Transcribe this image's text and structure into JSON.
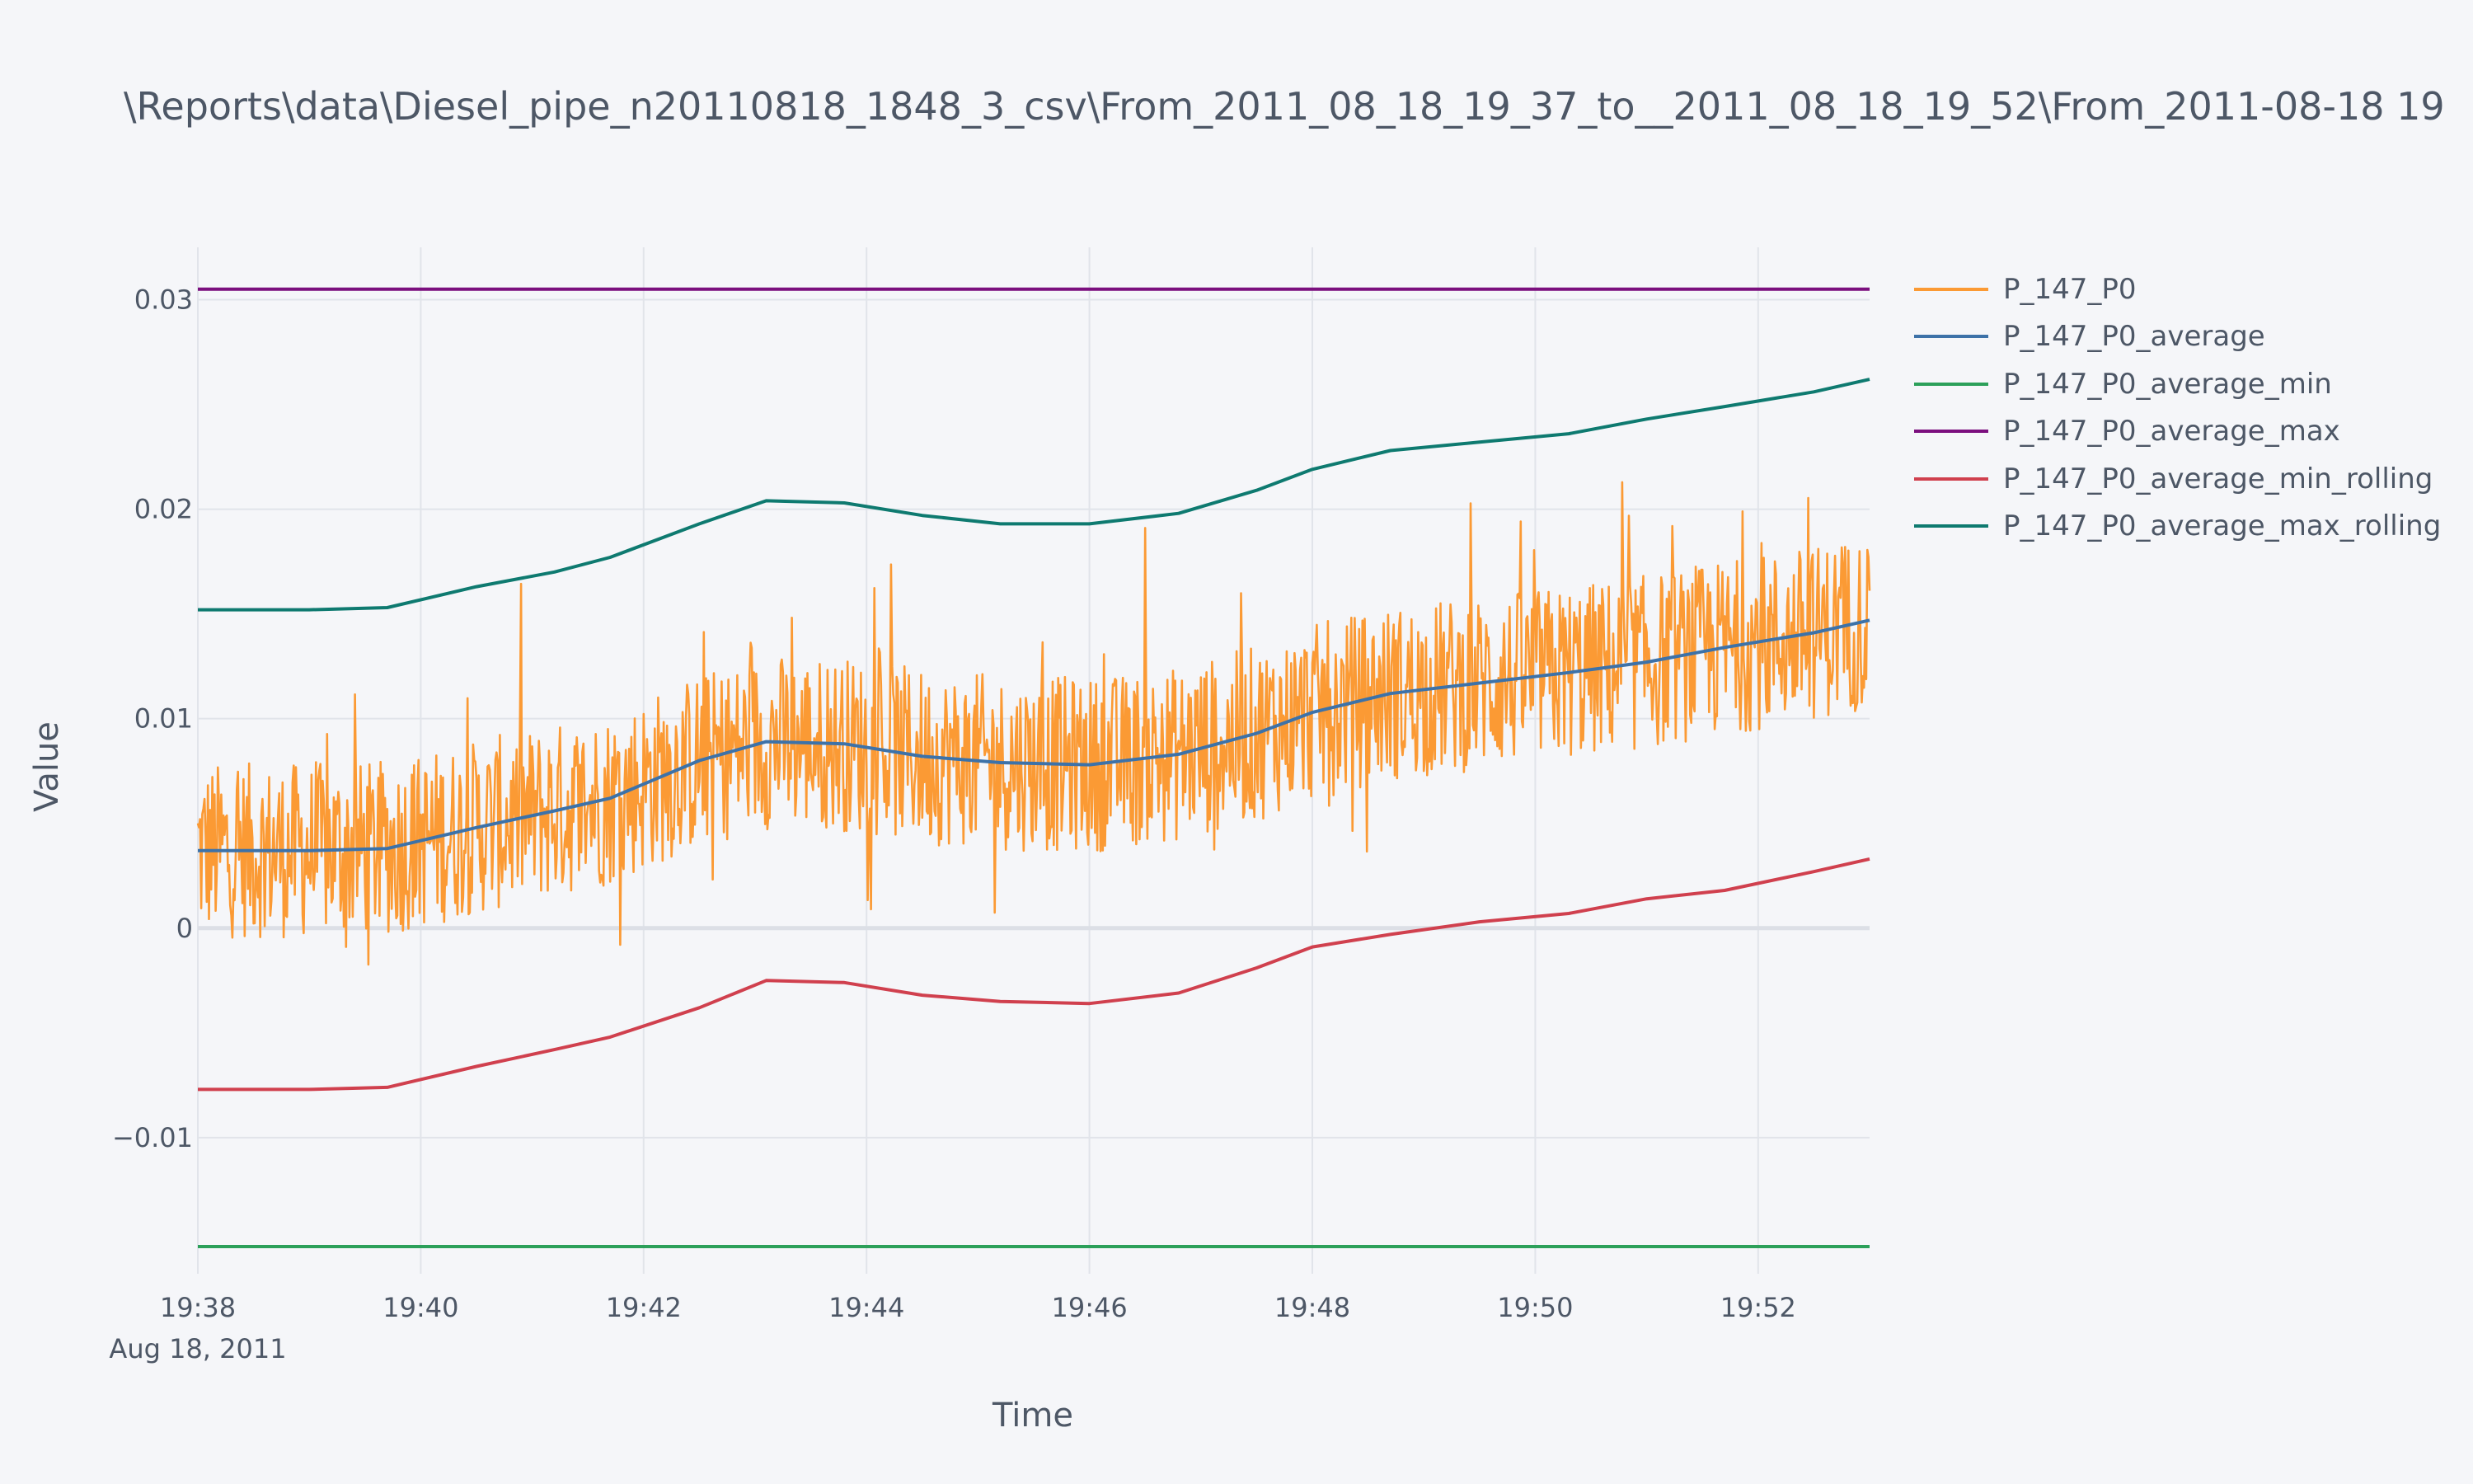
{
  "title": "\\Reports\\data\\Diesel_pipe_n20110818_1848_3_csv\\From_2011_08_18_19_37_to__2011_08_18_19_52\\From_2011-08-18 19",
  "chart_data": {
    "type": "line",
    "title": "\\Reports\\data\\Diesel_pipe_n20110818_1848_3_csv\\From_2011_08_18_19_37_to__2011_08_18_19_52\\From_2011-08-18 19",
    "xlabel": "Time",
    "ylabel": "Value",
    "x_unit": "minutes past 19:00, Aug 18, 2011",
    "xlim": [
      38,
      53
    ],
    "ylim": [
      -0.0165,
      0.0325
    ],
    "x_ticks": [
      {
        "value": 38,
        "label": "19:38",
        "sublabel": "Aug 18, 2011"
      },
      {
        "value": 40,
        "label": "19:40"
      },
      {
        "value": 42,
        "label": "19:42"
      },
      {
        "value": 44,
        "label": "19:44"
      },
      {
        "value": 46,
        "label": "19:46"
      },
      {
        "value": 48,
        "label": "19:48"
      },
      {
        "value": 50,
        "label": "19:50"
      },
      {
        "value": 52,
        "label": "19:52"
      }
    ],
    "y_ticks": [
      {
        "value": 0.03,
        "label": "0.03"
      },
      {
        "value": 0.02,
        "label": "0.02"
      },
      {
        "value": 0.01,
        "label": "0.01"
      },
      {
        "value": 0,
        "label": "0"
      },
      {
        "value": -0.01,
        "label": "−0.01"
      }
    ],
    "grid": true,
    "legend_position": "right",
    "series": [
      {
        "name": "P_147_P0",
        "color": "#fb9a34",
        "style": "noisy",
        "trend": [
          [
            38,
            0.0037
          ],
          [
            39,
            0.0037
          ],
          [
            39.7,
            0.0038
          ],
          [
            40.5,
            0.0048
          ],
          [
            41.2,
            0.0056
          ],
          [
            41.7,
            0.0062
          ],
          [
            42.5,
            0.008
          ],
          [
            43.1,
            0.0089
          ],
          [
            43.8,
            0.0088
          ],
          [
            44.5,
            0.0082
          ],
          [
            45.2,
            0.0079
          ],
          [
            46,
            0.0078
          ],
          [
            46.8,
            0.0083
          ],
          [
            47.5,
            0.0093
          ],
          [
            48,
            0.0103
          ],
          [
            48.7,
            0.0112
          ],
          [
            49.5,
            0.0117
          ],
          [
            50.3,
            0.0122
          ],
          [
            51,
            0.0127
          ],
          [
            51.7,
            0.0134
          ],
          [
            52.5,
            0.0141
          ],
          [
            53,
            0.0147
          ]
        ],
        "noise_amplitude": 0.0042,
        "spike_amplitude": 0.0068
      },
      {
        "name": "P_147_P0_average",
        "color": "#3d72a8",
        "points": [
          [
            38,
            0.0037
          ],
          [
            39,
            0.0037
          ],
          [
            39.7,
            0.0038
          ],
          [
            40.5,
            0.0048
          ],
          [
            41.2,
            0.0056
          ],
          [
            41.7,
            0.0062
          ],
          [
            42.5,
            0.008
          ],
          [
            43.1,
            0.0089
          ],
          [
            43.8,
            0.0088
          ],
          [
            44.5,
            0.0082
          ],
          [
            45.2,
            0.0079
          ],
          [
            46,
            0.0078
          ],
          [
            46.8,
            0.0083
          ],
          [
            47.5,
            0.0093
          ],
          [
            48,
            0.0103
          ],
          [
            48.7,
            0.0112
          ],
          [
            49.5,
            0.0117
          ],
          [
            50.3,
            0.0122
          ],
          [
            51,
            0.0127
          ],
          [
            51.7,
            0.0134
          ],
          [
            52.5,
            0.0141
          ],
          [
            53,
            0.0147
          ]
        ]
      },
      {
        "name": "P_147_P0_average_min",
        "color": "#2ca05a",
        "points": [
          [
            38,
            -0.0152
          ],
          [
            53,
            -0.0152
          ]
        ]
      },
      {
        "name": "P_147_P0_average_max",
        "color": "#7b0f7e",
        "points": [
          [
            38,
            0.0305
          ],
          [
            53,
            0.0305
          ]
        ]
      },
      {
        "name": "P_147_P0_average_min_rolling",
        "color": "#d0404e",
        "points": [
          [
            38,
            -0.0077
          ],
          [
            39,
            -0.0077
          ],
          [
            39.7,
            -0.0076
          ],
          [
            40.5,
            -0.0066
          ],
          [
            41.2,
            -0.0058
          ],
          [
            41.7,
            -0.0052
          ],
          [
            42.5,
            -0.0038
          ],
          [
            43.1,
            -0.0025
          ],
          [
            43.8,
            -0.0026
          ],
          [
            44.5,
            -0.0032
          ],
          [
            45.2,
            -0.0035
          ],
          [
            46,
            -0.0036
          ],
          [
            46.8,
            -0.0031
          ],
          [
            47.5,
            -0.0019
          ],
          [
            48,
            -0.0009
          ],
          [
            48.7,
            -0.0003
          ],
          [
            49.5,
            0.0003
          ],
          [
            50.3,
            0.0007
          ],
          [
            51,
            0.0014
          ],
          [
            51.7,
            0.0018
          ],
          [
            52.5,
            0.0027
          ],
          [
            53,
            0.0033
          ]
        ]
      },
      {
        "name": "P_147_P0_average_max_rolling",
        "color": "#0e7a70",
        "points": [
          [
            38,
            0.0152
          ],
          [
            39,
            0.0152
          ],
          [
            39.7,
            0.0153
          ],
          [
            40.5,
            0.0163
          ],
          [
            41.2,
            0.017
          ],
          [
            41.7,
            0.0177
          ],
          [
            42.5,
            0.0193
          ],
          [
            43.1,
            0.0204
          ],
          [
            43.8,
            0.0203
          ],
          [
            44.5,
            0.0197
          ],
          [
            45.2,
            0.0193
          ],
          [
            46,
            0.0193
          ],
          [
            46.8,
            0.0198
          ],
          [
            47.5,
            0.0209
          ],
          [
            48,
            0.0219
          ],
          [
            48.7,
            0.0228
          ],
          [
            49.5,
            0.0232
          ],
          [
            50.3,
            0.0236
          ],
          [
            51,
            0.0243
          ],
          [
            51.7,
            0.0249
          ],
          [
            52.5,
            0.0256
          ],
          [
            53,
            0.0262
          ]
        ]
      }
    ]
  }
}
